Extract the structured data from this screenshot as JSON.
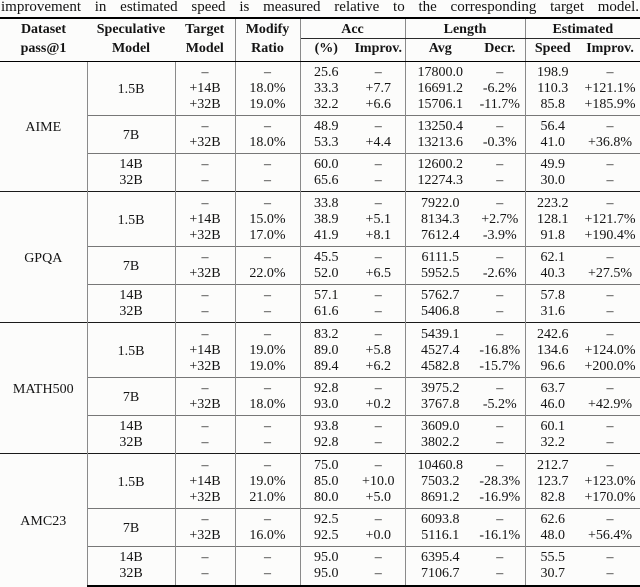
{
  "caption": "improvement in estimated speed is measured relative to the corresponding target model.",
  "table": {
    "header": {
      "dataset": [
        "Dataset",
        "pass@1"
      ],
      "speculative": [
        "Speculative",
        "Model"
      ],
      "target": [
        "Target",
        "Model"
      ],
      "modify": [
        "Modify",
        "Ratio"
      ],
      "acc": {
        "label": "Acc",
        "sub": [
          "(%)",
          "Improv."
        ]
      },
      "length": {
        "label": "Length",
        "sub": [
          "Avg",
          "Decr."
        ]
      },
      "estimated": {
        "label": "Estimated",
        "sub": [
          "Speed",
          "Improv."
        ]
      }
    },
    "groups": [
      {
        "dataset": "AIME",
        "blocks": [
          [
            {
              "spec": "1.5B",
              "rows": [
                [
                  "–",
                  "–",
                  "25.6",
                  "–",
                  "17800.0",
                  "–",
                  "198.9",
                  "–"
                ],
                [
                  "+14B",
                  "18.0%",
                  "33.3",
                  "+7.7",
                  "16691.2",
                  "-6.2%",
                  "110.3",
                  "+121.1%"
                ],
                [
                  "+32B",
                  "19.0%",
                  "32.2",
                  "+6.6",
                  "15706.1",
                  "-11.7%",
                  "85.8",
                  "+185.9%"
                ]
              ]
            }
          ],
          [
            {
              "spec": "7B",
              "rows": [
                [
                  "–",
                  "–",
                  "48.9",
                  "–",
                  "13250.4",
                  "–",
                  "56.4",
                  "–"
                ],
                [
                  "+32B",
                  "18.0%",
                  "53.3",
                  "+4.4",
                  "13213.6",
                  "-0.3%",
                  "41.0",
                  "+36.8%"
                ]
              ]
            }
          ],
          [
            {
              "spec": "14B",
              "rows": [
                [
                  "–",
                  "–",
                  "60.0",
                  "–",
                  "12600.2",
                  "–",
                  "49.9",
                  "–"
                ]
              ]
            },
            {
              "spec": "32B",
              "rows": [
                [
                  "–",
                  "–",
                  "65.6",
                  "–",
                  "12274.3",
                  "–",
                  "30.0",
                  "–"
                ]
              ]
            }
          ]
        ]
      },
      {
        "dataset": "GPQA",
        "blocks": [
          [
            {
              "spec": "1.5B",
              "rows": [
                [
                  "–",
                  "–",
                  "33.8",
                  "–",
                  "7922.0",
                  "–",
                  "223.2",
                  "–"
                ],
                [
                  "+14B",
                  "15.0%",
                  "38.9",
                  "+5.1",
                  "8134.3",
                  "+2.7%",
                  "128.1",
                  "+121.7%"
                ],
                [
                  "+32B",
                  "17.0%",
                  "41.9",
                  "+8.1",
                  "7612.4",
                  "-3.9%",
                  "91.8",
                  "+190.4%"
                ]
              ]
            }
          ],
          [
            {
              "spec": "7B",
              "rows": [
                [
                  "–",
                  "–",
                  "45.5",
                  "–",
                  "6111.5",
                  "–",
                  "62.1",
                  "–"
                ],
                [
                  "+32B",
                  "22.0%",
                  "52.0",
                  "+6.5",
                  "5952.5",
                  "-2.6%",
                  "40.3",
                  "+27.5%"
                ]
              ]
            }
          ],
          [
            {
              "spec": "14B",
              "rows": [
                [
                  "–",
                  "–",
                  "57.1",
                  "–",
                  "5762.7",
                  "–",
                  "57.8",
                  "–"
                ]
              ]
            },
            {
              "spec": "32B",
              "rows": [
                [
                  "–",
                  "–",
                  "61.6",
                  "–",
                  "5406.8",
                  "–",
                  "31.6",
                  "–"
                ]
              ]
            }
          ]
        ]
      },
      {
        "dataset": "MATH500",
        "blocks": [
          [
            {
              "spec": "1.5B",
              "rows": [
                [
                  "–",
                  "–",
                  "83.2",
                  "–",
                  "5439.1",
                  "–",
                  "242.6",
                  "–"
                ],
                [
                  "+14B",
                  "19.0%",
                  "89.0",
                  "+5.8",
                  "4527.4",
                  "-16.8%",
                  "134.6",
                  "+124.0%"
                ],
                [
                  "+32B",
                  "19.0%",
                  "89.4",
                  "+6.2",
                  "4582.8",
                  "-15.7%",
                  "96.6",
                  "+200.0%"
                ]
              ]
            }
          ],
          [
            {
              "spec": "7B",
              "rows": [
                [
                  "–",
                  "–",
                  "92.8",
                  "–",
                  "3975.2",
                  "–",
                  "63.7",
                  "–"
                ],
                [
                  "+32B",
                  "18.0%",
                  "93.0",
                  "+0.2",
                  "3767.8",
                  "-5.2%",
                  "46.0",
                  "+42.9%"
                ]
              ]
            }
          ],
          [
            {
              "spec": "14B",
              "rows": [
                [
                  "–",
                  "–",
                  "93.8",
                  "–",
                  "3609.0",
                  "–",
                  "60.1",
                  "–"
                ]
              ]
            },
            {
              "spec": "32B",
              "rows": [
                [
                  "–",
                  "–",
                  "92.8",
                  "–",
                  "3802.2",
                  "–",
                  "32.2",
                  "–"
                ]
              ]
            }
          ]
        ]
      },
      {
        "dataset": "AMC23",
        "blocks": [
          [
            {
              "spec": "1.5B",
              "rows": [
                [
                  "–",
                  "–",
                  "75.0",
                  "–",
                  "10460.8",
                  "–",
                  "212.7",
                  "–"
                ],
                [
                  "+14B",
                  "19.0%",
                  "85.0",
                  "+10.0",
                  "7503.2",
                  "-28.3%",
                  "123.7",
                  "+123.0%"
                ],
                [
                  "+32B",
                  "21.0%",
                  "80.0",
                  "+5.0",
                  "8691.2",
                  "-16.9%",
                  "82.8",
                  "+170.0%"
                ]
              ]
            }
          ],
          [
            {
              "spec": "7B",
              "rows": [
                [
                  "–",
                  "–",
                  "92.5",
                  "–",
                  "6093.8",
                  "–",
                  "62.6",
                  "–"
                ],
                [
                  "+32B",
                  "16.0%",
                  "92.5",
                  "+0.0",
                  "5116.1",
                  "-16.1%",
                  "48.0",
                  "+56.4%"
                ]
              ]
            }
          ],
          [
            {
              "spec": "14B",
              "rows": [
                [
                  "–",
                  "–",
                  "95.0",
                  "–",
                  "6395.4",
                  "–",
                  "55.5",
                  "–"
                ]
              ]
            },
            {
              "spec": "32B",
              "rows": [
                [
                  "–",
                  "–",
                  "95.0",
                  "–",
                  "7106.7",
                  "–",
                  "30.7",
                  "–"
                ]
              ]
            }
          ]
        ]
      }
    ]
  }
}
